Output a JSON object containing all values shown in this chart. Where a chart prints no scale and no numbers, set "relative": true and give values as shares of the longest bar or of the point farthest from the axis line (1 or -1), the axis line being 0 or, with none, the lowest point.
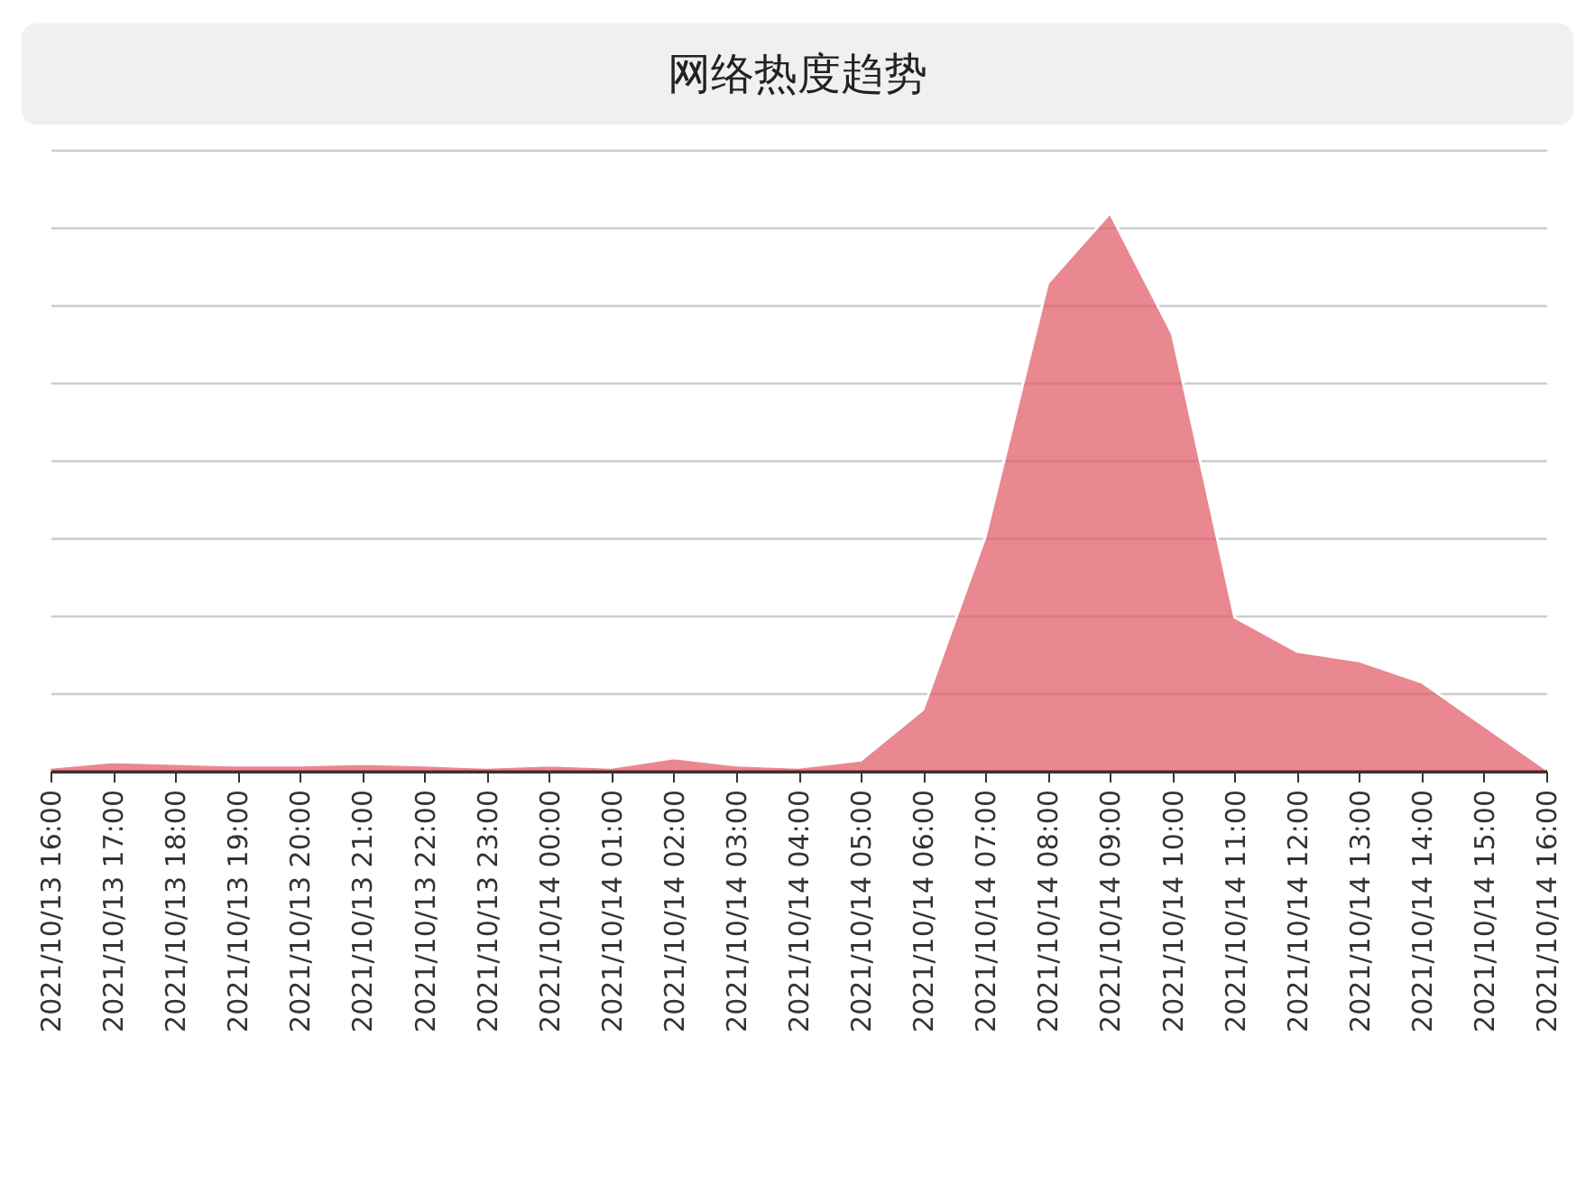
{
  "chart_data": {
    "type": "area",
    "title": "网络热度趋势",
    "relative": true,
    "grid": "y",
    "categories": [
      "2021/10/13 16:00",
      "2021/10/13 17:00",
      "2021/10/13 18:00",
      "2021/10/13 19:00",
      "2021/10/13 20:00",
      "2021/10/13 21:00",
      "2021/10/13 22:00",
      "2021/10/13 23:00",
      "2021/10/14 00:00",
      "2021/10/14 01:00",
      "2021/10/14 02:00",
      "2021/10/14 03:00",
      "2021/10/14 04:00",
      "2021/10/14 05:00",
      "2021/10/14 06:00",
      "2021/10/14 07:00",
      "2021/10/14 08:00",
      "2021/10/14 09:00",
      "2021/10/14 10:00",
      "2021/10/14 11:00",
      "2021/10/14 12:00",
      "2021/10/14 13:00",
      "2021/10/14 14:00",
      "2021/10/14 15:00",
      "2021/10/14 16:00"
    ],
    "series": [
      {
        "color": "#e05561",
        "values": [
          0.006,
          0.016,
          0.013,
          0.01,
          0.01,
          0.013,
          0.01,
          0.006,
          0.01,
          0.006,
          0.023,
          0.01,
          0.006,
          0.019,
          0.11,
          0.42,
          0.874,
          1,
          0.783,
          0.275,
          0.214,
          0.197,
          0.159,
          0.081,
          0.003
        ]
      }
    ]
  }
}
